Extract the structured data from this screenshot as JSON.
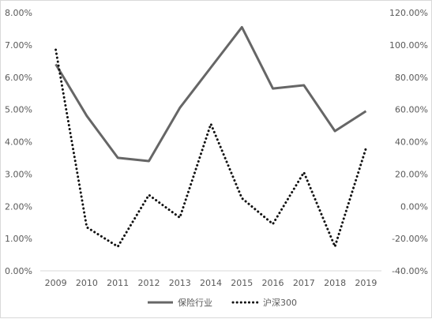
{
  "chart_data": {
    "type": "line",
    "x": [
      "2009",
      "2010",
      "2011",
      "2012",
      "2013",
      "2014",
      "2015",
      "2016",
      "2017",
      "2018",
      "2019"
    ],
    "series": [
      {
        "name": "保险行业",
        "axis": "left",
        "style": "solid",
        "color": "#666666",
        "values": [
          6.4,
          4.8,
          3.5,
          3.4,
          5.05,
          6.3,
          7.55,
          5.65,
          5.75,
          4.33,
          4.95
        ]
      },
      {
        "name": "沪深300",
        "axis": "right",
        "style": "dotted",
        "color": "#111111",
        "values": [
          97,
          -13,
          -25,
          7,
          -7,
          51,
          5,
          -11,
          21,
          -25,
          36
        ]
      }
    ],
    "y_left": {
      "ylim": [
        0,
        8
      ],
      "ticks": [
        0,
        1,
        2,
        3,
        4,
        5,
        6,
        7,
        8
      ],
      "tick_labels": [
        "0.00%",
        "1.00%",
        "2.00%",
        "3.00%",
        "4.00%",
        "5.00%",
        "6.00%",
        "7.00%",
        "8.00%"
      ]
    },
    "y_right": {
      "ylim": [
        -40,
        120
      ],
      "ticks": [
        -40,
        -20,
        0,
        20,
        40,
        60,
        80,
        100,
        120
      ],
      "tick_labels": [
        "-40.00%",
        "-20.00%",
        "0.00%",
        "20.00%",
        "40.00%",
        "60.00%",
        "80.00%",
        "100.00%",
        "120.00%"
      ]
    },
    "grid": false,
    "legend_position": "bottom"
  }
}
